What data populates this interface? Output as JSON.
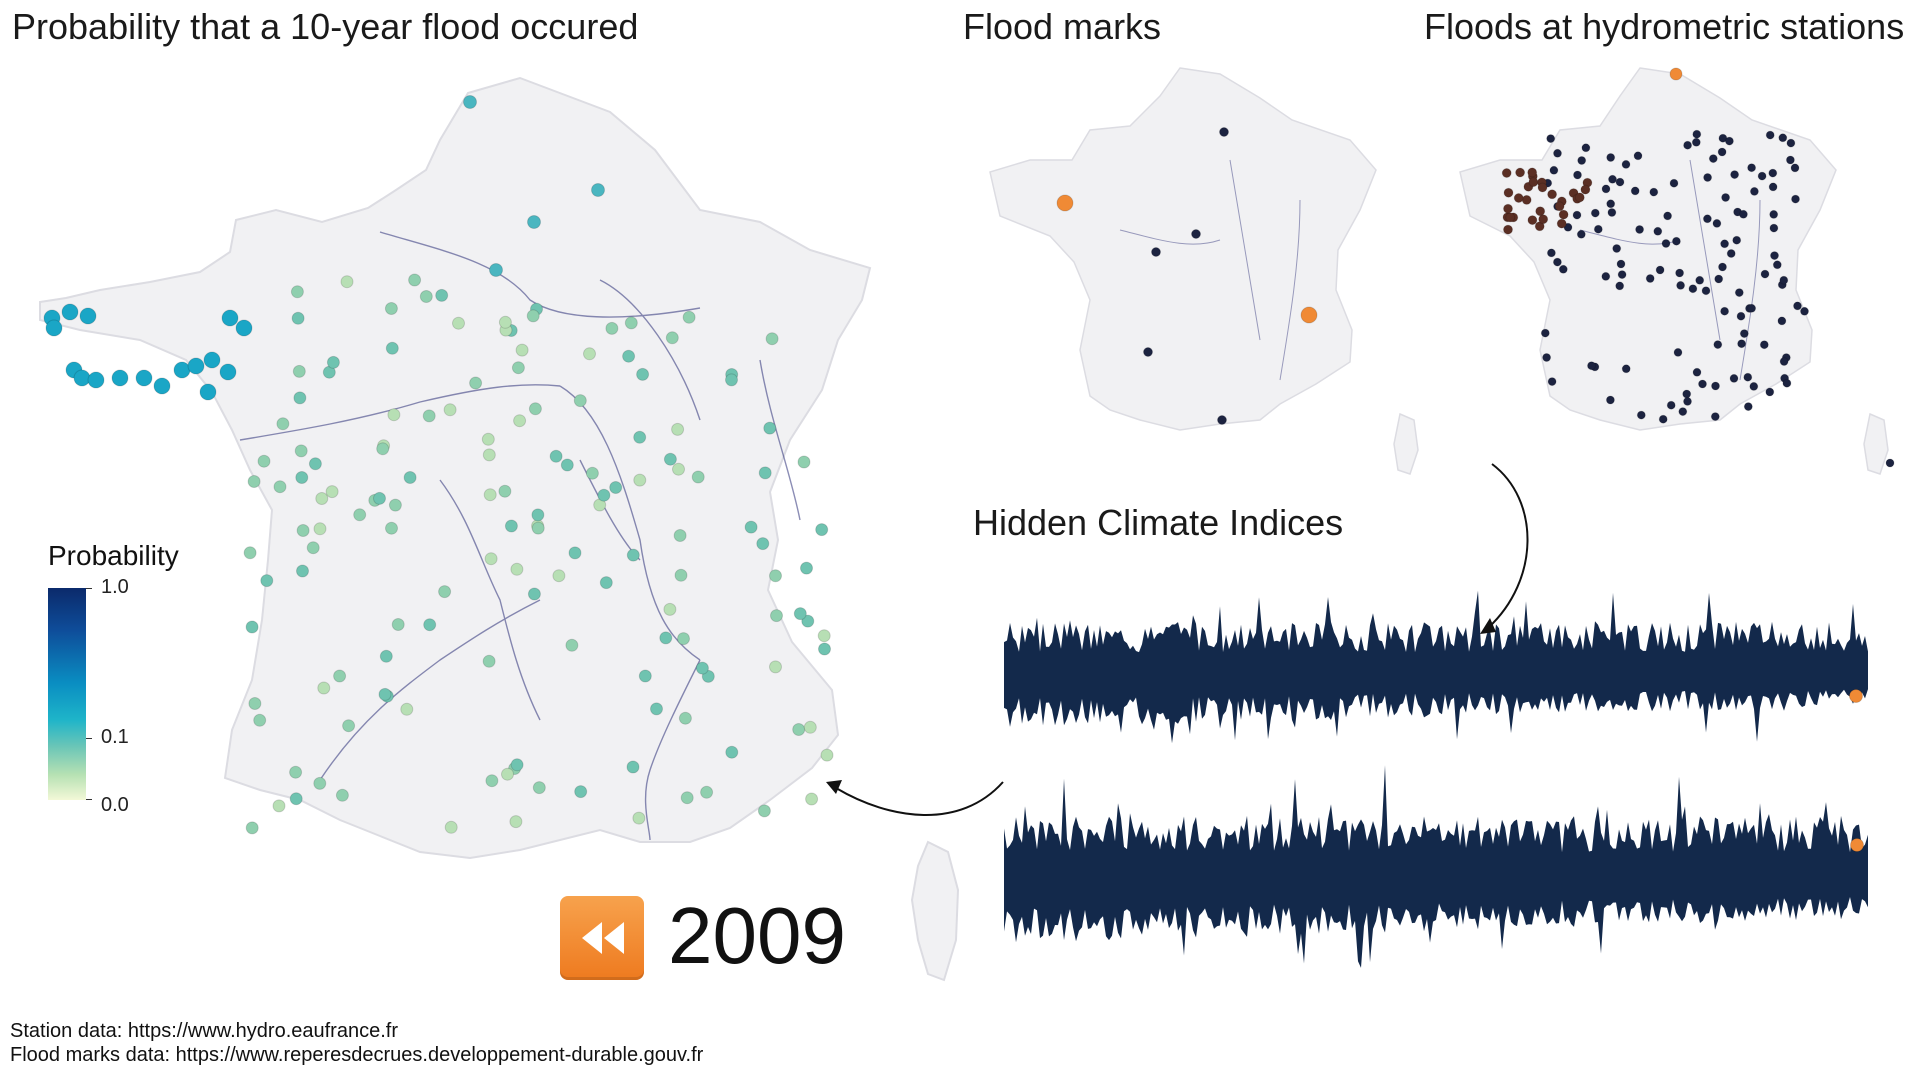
{
  "titles": {
    "main": "Probability that a 10-year flood occured",
    "flood_marks": "Flood marks",
    "stations": "Floods at hydrometric stations",
    "hidden_climate": "Hidden Climate Indices"
  },
  "legend": {
    "title": "Probability",
    "ticks": [
      "1.0",
      "0.1",
      "0.0"
    ]
  },
  "year": "2009",
  "rewind_icon": "rewind-icon",
  "credits": {
    "station": "Station data: https://www.hydro.eaufrance.fr",
    "flood_marks": "Flood marks data: https://www.reperesdecrues.developpement-durable.gouv.fr"
  },
  "colors": {
    "map_fill": "#f1f1f3",
    "map_edge": "#d9d9de",
    "river": "#2c2f78",
    "series_fill": "#13294b",
    "highlight": "#f08a35"
  }
}
